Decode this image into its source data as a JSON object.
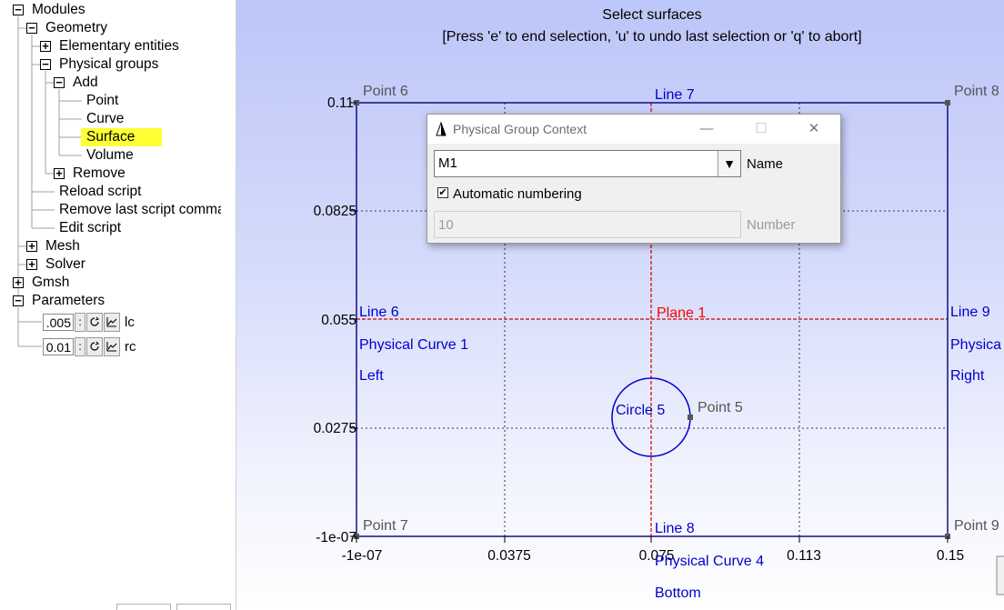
{
  "tree": {
    "modules": "Modules",
    "geometry": "Geometry",
    "elementary": "Elementary entities",
    "physical": "Physical groups",
    "add": "Add",
    "point": "Point",
    "curve": "Curve",
    "surface": "Surface",
    "volume": "Volume",
    "remove": "Remove",
    "reload": "Reload script",
    "remove_last": "Remove last script comma",
    "edit_script": "Edit script",
    "mesh": "Mesh",
    "solver": "Solver",
    "gmsh": "Gmsh",
    "parameters": "Parameters",
    "params": [
      {
        "value": ".005",
        "name": "lc"
      },
      {
        "value": "0.01",
        "name": "rc"
      }
    ],
    "expand_glyph": "+",
    "collapse_glyph": "−",
    "loop_icon": "loop-icon",
    "graph_icon": "graph-icon",
    "highlight_color": "#ffff33"
  },
  "viewer": {
    "prompt_title": "Select surfaces",
    "prompt_hint": "[Press 'e' to end selection, 'u' to undo last selection or 'q' to abort]",
    "axis_color": "#000080",
    "entity_color": "#0000cc",
    "point_color": "#555555",
    "selected_color": "#ff0000",
    "x_ticks": [
      "-1e-07",
      "0.0375",
      "0.075",
      "0.113",
      "0.15"
    ],
    "y_ticks": [
      "0.11",
      "0.0825",
      "0.055",
      "0.0275",
      "-1e-07"
    ],
    "points": [
      "Point 6",
      "Point 8",
      "Point 7",
      "Point 9",
      "Point 5"
    ],
    "lines": {
      "top": "Line 7",
      "bottom": "Line 8",
      "left": "Line 6",
      "right": "Line 9",
      "circle": "Circle 5"
    },
    "plane": "Plane 1",
    "physical_left_1": "Physical Curve 1",
    "physical_left_2": "Left",
    "physical_right_1": "Physica",
    "physical_right_2": "Right",
    "physical_bottom_1": "Physical Curve 4",
    "physical_bottom_2": "Bottom"
  },
  "dialog": {
    "title": "Physical Group Context",
    "name_value": "M1",
    "name_label": "Name",
    "auto_label": "Automatic numbering",
    "auto_checked": "✔",
    "number_value": "10",
    "number_label": "Number",
    "minimize": "—",
    "maximize": "☐",
    "close": "✕",
    "dropdown_glyph": "▼"
  }
}
